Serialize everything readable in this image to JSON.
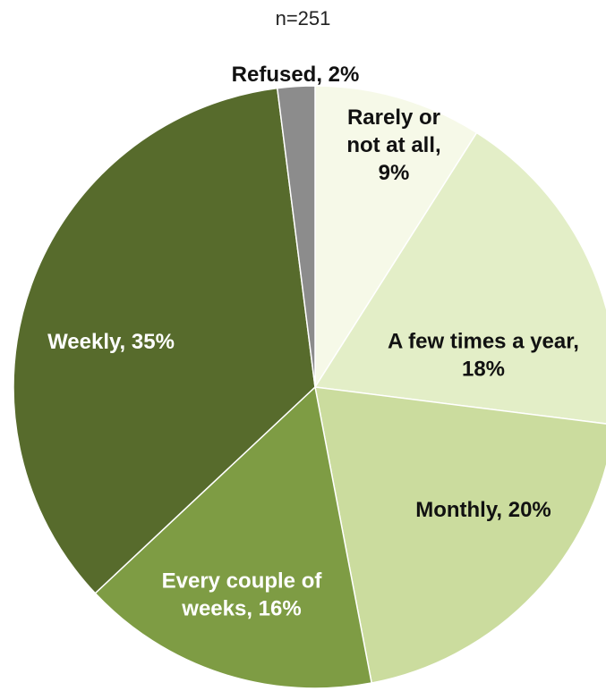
{
  "chart_data": {
    "type": "pie",
    "title": "",
    "subtitle": "n=251",
    "slices": [
      {
        "name": "Rarely or not at all",
        "value": 9,
        "label_lines": [
          "Rarely or",
          "not at all,",
          "9%"
        ],
        "color": "#f6f9e8",
        "text_color": "#111111"
      },
      {
        "name": "A few times a year",
        "value": 18,
        "label_lines": [
          "A few times a year,",
          "18%"
        ],
        "color": "#e3eec7",
        "text_color": "#111111"
      },
      {
        "name": "Monthly",
        "value": 20,
        "label_lines": [
          "Monthly, 20%"
        ],
        "color": "#cbdc9e",
        "text_color": "#111111"
      },
      {
        "name": "Every couple of weeks",
        "value": 16,
        "label_lines": [
          "Every couple of",
          "weeks, 16%"
        ],
        "color": "#7e9c44",
        "text_color": "#ffffff"
      },
      {
        "name": "Weekly",
        "value": 35,
        "label_lines": [
          "Weekly, 35%"
        ],
        "color": "#576b2c",
        "text_color": "#ffffff"
      },
      {
        "name": "Refused",
        "value": 2,
        "label_lines": [
          "Refused, 2%"
        ],
        "color": "#8c8c8c",
        "text_color": "#111111"
      }
    ],
    "legend": "none"
  }
}
